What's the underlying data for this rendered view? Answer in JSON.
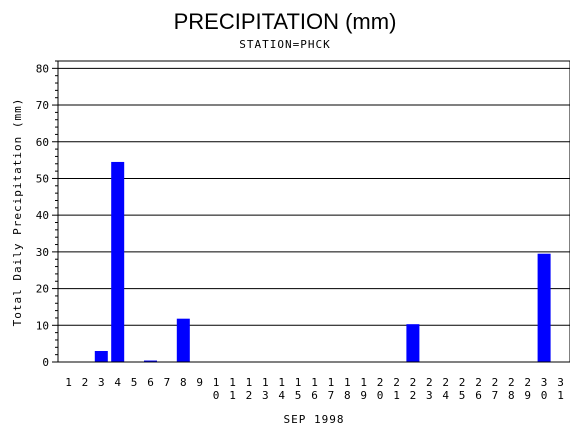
{
  "chart_data": {
    "type": "bar",
    "title": "PRECIPITATION (mm)",
    "subtitle": "STATION=PHCK",
    "xlabel": "SEP 1998",
    "ylabel": "Total Daily Precipitation (mm)",
    "ylim": [
      0,
      82
    ],
    "yticks": [
      0,
      10,
      20,
      30,
      40,
      50,
      60,
      70,
      80
    ],
    "grid": true,
    "bar_color": "#0000ff",
    "categories": [
      "1",
      "2",
      "3",
      "4",
      "5",
      "6",
      "7",
      "8",
      "9",
      "10",
      "11",
      "12",
      "13",
      "14",
      "15",
      "16",
      "17",
      "18",
      "19",
      "20",
      "21",
      "22",
      "23",
      "24",
      "25",
      "26",
      "27",
      "28",
      "29",
      "30",
      "31"
    ],
    "values": [
      0,
      0,
      3,
      54.5,
      0,
      0.4,
      0,
      11.8,
      0,
      0,
      0,
      0,
      0,
      0,
      0,
      0,
      0,
      0,
      0,
      0,
      0,
      10.3,
      0,
      0,
      0,
      0,
      0,
      0,
      0,
      29.5,
      0
    ]
  }
}
